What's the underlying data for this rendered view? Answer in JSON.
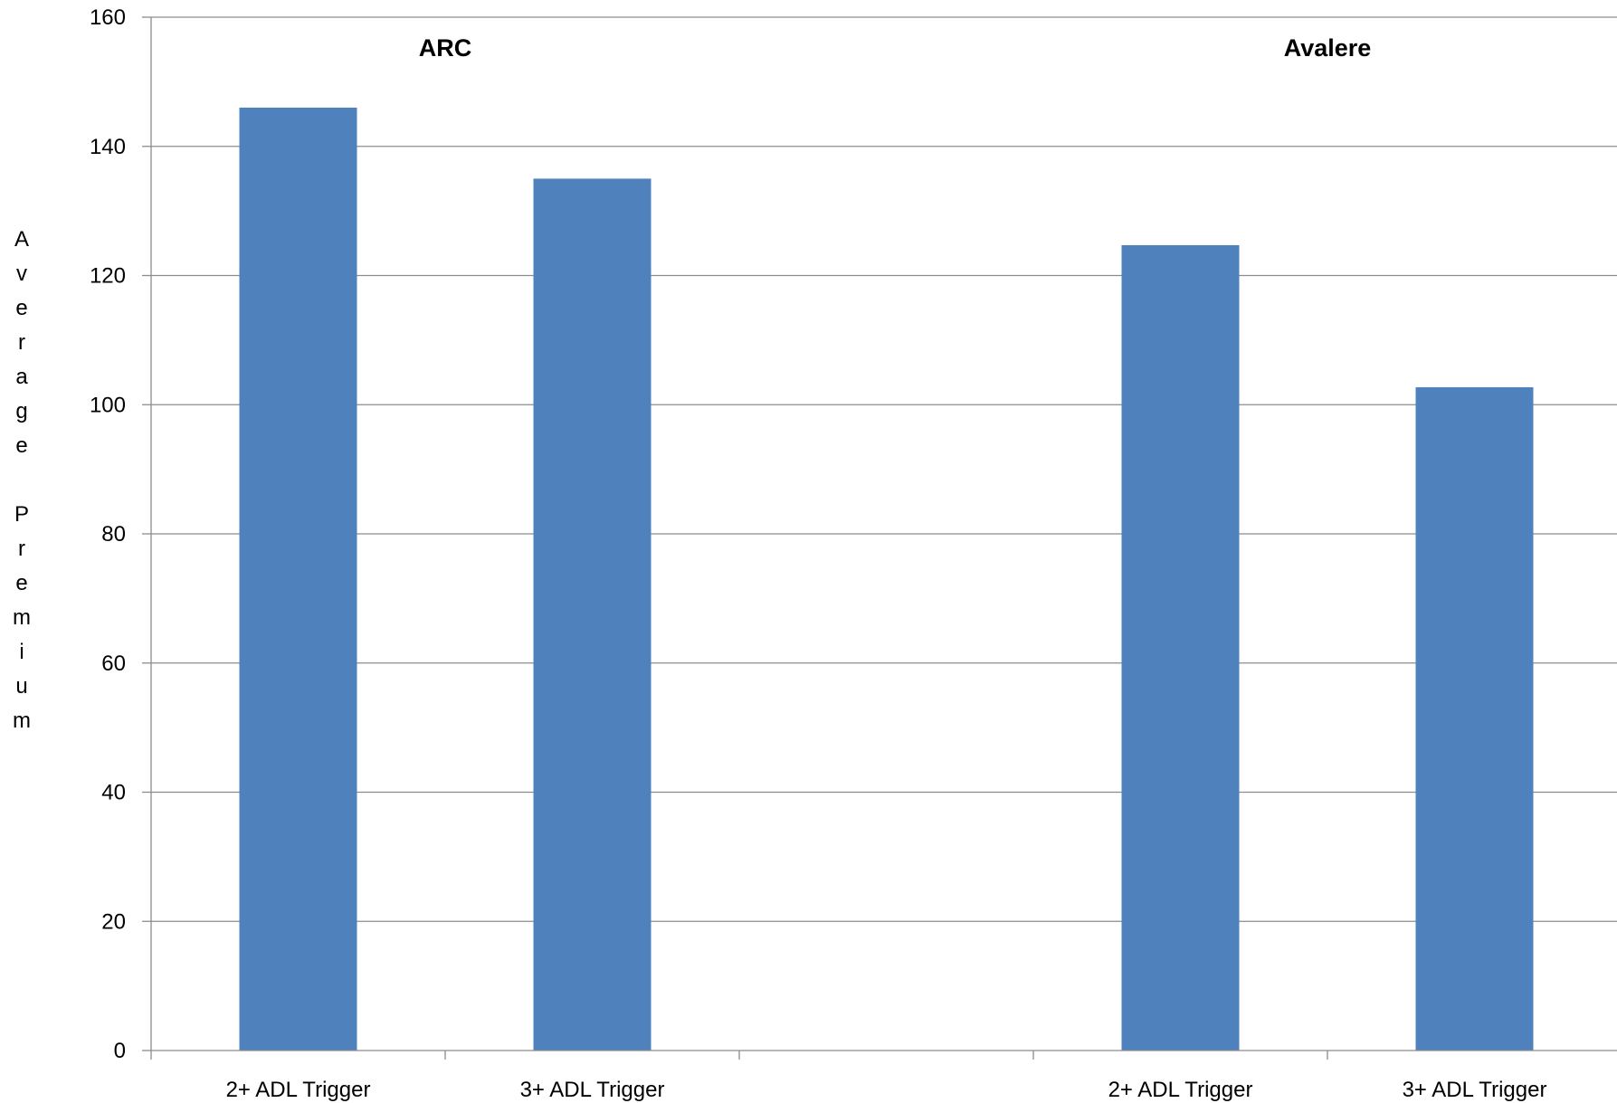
{
  "chart_data": {
    "type": "bar",
    "title": "",
    "xlabel": "",
    "ylabel": "Average Premium",
    "ylim": [
      0,
      160
    ],
    "yticks": [
      0,
      20,
      40,
      60,
      80,
      100,
      120,
      140,
      160
    ],
    "grid": true,
    "legend": "none",
    "bar_color": "#4F81BD",
    "groups": [
      {
        "label": "ARC",
        "categories": [
          "2+ ADL Trigger",
          "3+ ADL Trigger"
        ],
        "values": [
          146,
          135
        ]
      },
      {
        "label": "Avalere",
        "categories": [
          "2+ ADL Trigger",
          "3+ ADL Trigger"
        ],
        "values": [
          124.7,
          102.7
        ]
      }
    ]
  }
}
